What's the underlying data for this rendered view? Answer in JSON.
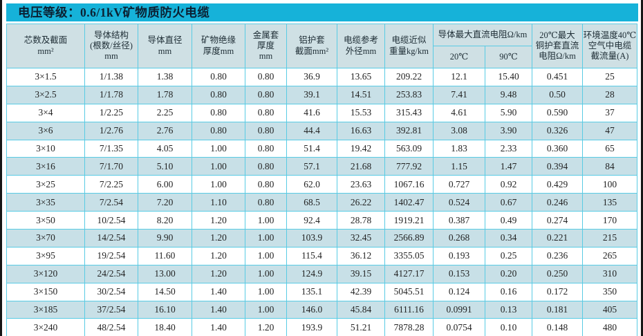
{
  "title": "电压等级：0.6/1kV矿物质防火电缆",
  "colors": {
    "title_bar": "#16b2d9",
    "title_text": "#0b2133",
    "header_bg": "#cfe0e4",
    "stripe_bg": "#c8e0e7",
    "grid_line": "#58cbe4",
    "outer_frame": "#151515"
  },
  "table": {
    "headers": {
      "cores": "芯数及截面\nmm²",
      "structure": "导体结构\n(根数/丝径)\nmm",
      "diameter": "导体直径\nmm",
      "insulation": "矿物绝缘\n厚度mm",
      "metal_sheath": "金属套\n厚度\nmm",
      "al_sheath": "铝护套\n截面mm²",
      "outer_diameter": "电缆参考\n外径mm",
      "weight": "电缆近似\n重量kg/km",
      "dc_resistance_group": "导体最大直流电阻Ω/km",
      "t20": "20℃",
      "t90": "90℃",
      "cu_sheath_resistance": "20℃最大\n铜护套直流\n电阻Ω/km",
      "ampacity": "环境温度40℃\n空气中电缆\n截流量(A)"
    },
    "rows": [
      [
        "3×1.5",
        "1/1.38",
        "1.38",
        "0.80",
        "0.80",
        "36.9",
        "13.65",
        "209.22",
        "12.1",
        "15.40",
        "0.451",
        "25"
      ],
      [
        "3×2.5",
        "1/1.78",
        "1.78",
        "0.80",
        "0.80",
        "39.1",
        "14.51",
        "253.83",
        "7.41",
        "9.48",
        "0.50",
        "28"
      ],
      [
        "3×4",
        "1/2.25",
        "2.25",
        "0.80",
        "0.80",
        "41.6",
        "15.53",
        "315.43",
        "4.61",
        "5.90",
        "0.590",
        "37"
      ],
      [
        "3×6",
        "1/2.76",
        "2.76",
        "0.80",
        "0.80",
        "44.4",
        "16.63",
        "392.81",
        "3.08",
        "3.90",
        "0.326",
        "47"
      ],
      [
        "3×10",
        "7/1.35",
        "4.05",
        "1.00",
        "0.80",
        "51.4",
        "19.42",
        "563.09",
        "1.83",
        "2.33",
        "0.360",
        "65"
      ],
      [
        "3×16",
        "7/1.70",
        "5.10",
        "1.00",
        "0.80",
        "57.1",
        "21.68",
        "777.92",
        "1.15",
        "1.47",
        "0.394",
        "84"
      ],
      [
        "3×25",
        "7/2.25",
        "6.00",
        "1.00",
        "0.80",
        "62.0",
        "23.63",
        "1067.16",
        "0.727",
        "0.92",
        "0.429",
        "100"
      ],
      [
        "3×35",
        "7/2.54",
        "7.20",
        "1.10",
        "0.80",
        "68.5",
        "26.22",
        "1402.47",
        "0.524",
        "0.67",
        "0.246",
        "135"
      ],
      [
        "3×50",
        "10/2.54",
        "8.20",
        "1.20",
        "1.00",
        "92.4",
        "28.78",
        "1919.21",
        "0.387",
        "0.49",
        "0.274",
        "170"
      ],
      [
        "3×70",
        "14/2.54",
        "9.90",
        "1.20",
        "1.00",
        "103.9",
        "32.45",
        "2566.89",
        "0.268",
        "0.34",
        "0.221",
        "215"
      ],
      [
        "3×95",
        "19/2.54",
        "11.60",
        "1.20",
        "1.00",
        "115.4",
        "36.12",
        "3355.05",
        "0.193",
        "0.25",
        "0.236",
        "265"
      ],
      [
        "3×120",
        "24/2.54",
        "13.00",
        "1.20",
        "1.00",
        "124.9",
        "39.15",
        "4127.17",
        "0.153",
        "0.20",
        "0.250",
        "310"
      ],
      [
        "3×150",
        "30/2.54",
        "14.50",
        "1.40",
        "1.00",
        "135.1",
        "42.39",
        "5045.51",
        "0.124",
        "0.16",
        "0.172",
        "350"
      ],
      [
        "3×185",
        "37/2.54",
        "16.10",
        "1.40",
        "1.00",
        "146.0",
        "45.84",
        "6111.16",
        "0.0991",
        "0.13",
        "0.181",
        "405"
      ],
      [
        "3×240",
        "48/2.54",
        "18.40",
        "1.40",
        "1.20",
        "193.9",
        "51.21",
        "7878.28",
        "0.0754",
        "0.10",
        "0.148",
        "480"
      ]
    ]
  }
}
